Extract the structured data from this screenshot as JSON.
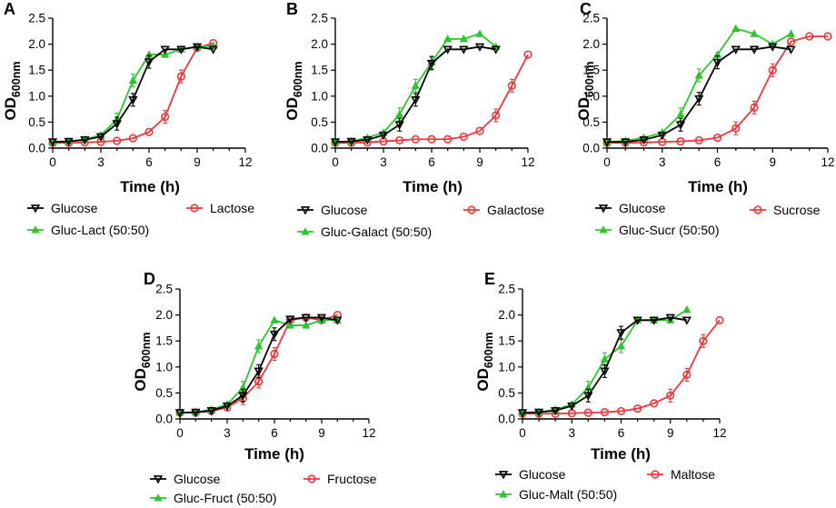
{
  "colors": {
    "glucose": "#000000",
    "sugar": "#e8393d",
    "mix": "#2ec52e"
  },
  "chart_data": [
    {
      "type": "line",
      "panel": "A",
      "xlabel": "Time (h)",
      "ylabel_main": "OD",
      "ylabel_sub": "600nm",
      "xlim": [
        0,
        12
      ],
      "ylim": [
        0,
        2.5
      ],
      "xticks": [
        "0",
        "3",
        "6",
        "9",
        "12"
      ],
      "yticks": [
        "0.0",
        "0.5",
        "1.0",
        "1.5",
        "2.0",
        "2.5"
      ],
      "series": [
        {
          "name": "Glucose",
          "role": "glucose",
          "marker": "triangle-down",
          "x": [
            0,
            1,
            2,
            3,
            4,
            5,
            6,
            7,
            8,
            9,
            10
          ],
          "y": [
            0.12,
            0.13,
            0.16,
            0.22,
            0.47,
            0.93,
            1.66,
            1.9,
            1.9,
            1.95,
            1.9
          ]
        },
        {
          "name": "Lactose",
          "role": "sugar",
          "marker": "circle",
          "x": [
            0,
            1,
            2,
            3,
            4,
            5,
            6,
            7,
            8,
            9,
            10
          ],
          "y": [
            0.1,
            0.1,
            0.11,
            0.12,
            0.14,
            0.19,
            0.31,
            0.6,
            1.38,
            1.93,
            2.02
          ]
        },
        {
          "name": "Gluc-Lact (50:50)",
          "role": "mix",
          "marker": "triangle-up",
          "x": [
            0,
            1,
            2,
            3,
            4,
            5,
            6,
            7,
            8,
            9,
            10
          ],
          "y": [
            0.12,
            0.13,
            0.17,
            0.25,
            0.55,
            1.3,
            1.8,
            1.8,
            1.9,
            1.95,
            1.97
          ]
        }
      ]
    },
    {
      "type": "line",
      "panel": "B",
      "xlabel": "Time (h)",
      "ylabel_main": "OD",
      "ylabel_sub": "600nm",
      "xlim": [
        0,
        12
      ],
      "ylim": [
        0,
        2.5
      ],
      "xticks": [
        "0",
        "3",
        "6",
        "9",
        "12"
      ],
      "yticks": [
        "0.0",
        "0.5",
        "1.0",
        "1.5",
        "2.0",
        "2.5"
      ],
      "series": [
        {
          "name": "Glucose",
          "role": "glucose",
          "marker": "triangle-down",
          "x": [
            0,
            1,
            2,
            3,
            4,
            5,
            6,
            7,
            8,
            9,
            10
          ],
          "y": [
            0.12,
            0.13,
            0.16,
            0.25,
            0.45,
            0.93,
            1.63,
            1.9,
            1.9,
            1.95,
            1.9
          ]
        },
        {
          "name": "Galactose",
          "role": "sugar",
          "marker": "circle",
          "x": [
            0,
            1,
            2,
            3,
            4,
            5,
            6,
            7,
            8,
            9,
            10,
            11,
            12
          ],
          "y": [
            0.1,
            0.1,
            0.11,
            0.13,
            0.15,
            0.17,
            0.17,
            0.17,
            0.22,
            0.33,
            0.63,
            1.2,
            1.8
          ]
        },
        {
          "name": "Gluc-Galact (50:50)",
          "role": "mix",
          "marker": "triangle-up",
          "x": [
            0,
            1,
            2,
            3,
            4,
            5,
            6,
            7,
            8,
            9,
            10
          ],
          "y": [
            0.12,
            0.13,
            0.2,
            0.3,
            0.65,
            1.2,
            1.65,
            2.1,
            2.1,
            2.2,
            1.95
          ]
        }
      ]
    },
    {
      "type": "line",
      "panel": "C",
      "xlabel": "Time (h)",
      "ylabel_main": "OD",
      "ylabel_sub": "600nm",
      "xlim": [
        0,
        12
      ],
      "ylim": [
        0,
        2.5
      ],
      "xticks": [
        "0",
        "3",
        "6",
        "9",
        "12"
      ],
      "yticks": [
        "0.0",
        "0.5",
        "1.0",
        "1.5",
        "2.0",
        "2.5"
      ],
      "series": [
        {
          "name": "Glucose",
          "role": "glucose",
          "marker": "triangle-down",
          "x": [
            0,
            1,
            2,
            3,
            4,
            5,
            6,
            7,
            8,
            9,
            10
          ],
          "y": [
            0.12,
            0.12,
            0.16,
            0.25,
            0.45,
            0.95,
            1.65,
            1.9,
            1.9,
            1.95,
            1.9
          ]
        },
        {
          "name": "Sucrose",
          "role": "sugar",
          "marker": "circle",
          "x": [
            0,
            1,
            2,
            3,
            4,
            5,
            6,
            7,
            8,
            9,
            10,
            11,
            12
          ],
          "y": [
            0.1,
            0.1,
            0.11,
            0.12,
            0.13,
            0.15,
            0.2,
            0.38,
            0.78,
            1.5,
            2.05,
            2.15,
            2.15
          ]
        },
        {
          "name": "Gluc-Sucr (50:50)",
          "role": "mix",
          "marker": "triangle-up",
          "x": [
            0,
            1,
            2,
            3,
            4,
            5,
            6,
            7,
            8,
            9,
            10
          ],
          "y": [
            0.12,
            0.14,
            0.2,
            0.3,
            0.65,
            1.4,
            1.8,
            2.3,
            2.2,
            2.0,
            2.2
          ]
        }
      ]
    },
    {
      "type": "line",
      "panel": "D",
      "xlabel": "Time (h)",
      "ylabel_main": "OD",
      "ylabel_sub": "600nm",
      "xlim": [
        0,
        12
      ],
      "ylim": [
        0,
        2.5
      ],
      "xticks": [
        "0",
        "3",
        "6",
        "9",
        "12"
      ],
      "yticks": [
        "0.0",
        "0.5",
        "1.0",
        "1.5",
        "2.0",
        "2.5"
      ],
      "series": [
        {
          "name": "Glucose",
          "role": "glucose",
          "marker": "triangle-down",
          "x": [
            0,
            1,
            2,
            3,
            4,
            5,
            6,
            7,
            8,
            9,
            10
          ],
          "y": [
            0.12,
            0.13,
            0.16,
            0.25,
            0.45,
            0.92,
            1.63,
            1.92,
            1.95,
            1.95,
            1.9
          ]
        },
        {
          "name": "Fructose",
          "role": "sugar",
          "marker": "circle",
          "x": [
            0,
            1,
            2,
            3,
            4,
            5,
            6,
            7,
            8,
            9,
            10
          ],
          "y": [
            0.12,
            0.12,
            0.15,
            0.22,
            0.4,
            0.72,
            1.25,
            1.9,
            1.95,
            1.9,
            2.0
          ]
        },
        {
          "name": "Gluc-Fruct (50:50)",
          "role": "mix",
          "marker": "triangle-up",
          "x": [
            0,
            1,
            2,
            3,
            4,
            5,
            6,
            7,
            8,
            9,
            10
          ],
          "y": [
            0.12,
            0.13,
            0.18,
            0.28,
            0.6,
            1.4,
            1.9,
            1.8,
            1.8,
            1.9,
            1.9
          ]
        }
      ]
    },
    {
      "type": "line",
      "panel": "E",
      "xlabel": "Time (h)",
      "ylabel_main": "OD",
      "ylabel_sub": "600nm",
      "xlim": [
        0,
        12
      ],
      "ylim": [
        0,
        2.5
      ],
      "xticks": [
        "0",
        "3",
        "6",
        "9",
        "12"
      ],
      "yticks": [
        "0.0",
        "0.5",
        "1.0",
        "1.5",
        "2.0",
        "2.5"
      ],
      "series": [
        {
          "name": "Glucose",
          "role": "glucose",
          "marker": "triangle-down",
          "x": [
            0,
            1,
            2,
            3,
            4,
            5,
            6,
            7,
            8,
            9,
            10
          ],
          "y": [
            0.12,
            0.13,
            0.16,
            0.25,
            0.45,
            0.92,
            1.66,
            1.9,
            1.9,
            1.95,
            1.9
          ]
        },
        {
          "name": "Maltose",
          "role": "sugar",
          "marker": "circle",
          "x": [
            0,
            1,
            2,
            3,
            4,
            5,
            6,
            7,
            8,
            9,
            10,
            11,
            12
          ],
          "y": [
            0.1,
            0.1,
            0.1,
            0.11,
            0.12,
            0.13,
            0.15,
            0.2,
            0.3,
            0.45,
            0.85,
            1.5,
            1.9
          ]
        },
        {
          "name": "Gluc-Malt (50:50)",
          "role": "mix",
          "marker": "triangle-up",
          "x": [
            0,
            1,
            2,
            3,
            4,
            5,
            6,
            7,
            8,
            9,
            10
          ],
          "y": [
            0.12,
            0.13,
            0.18,
            0.28,
            0.6,
            1.15,
            1.4,
            1.9,
            1.9,
            1.9,
            2.1
          ]
        }
      ]
    }
  ]
}
